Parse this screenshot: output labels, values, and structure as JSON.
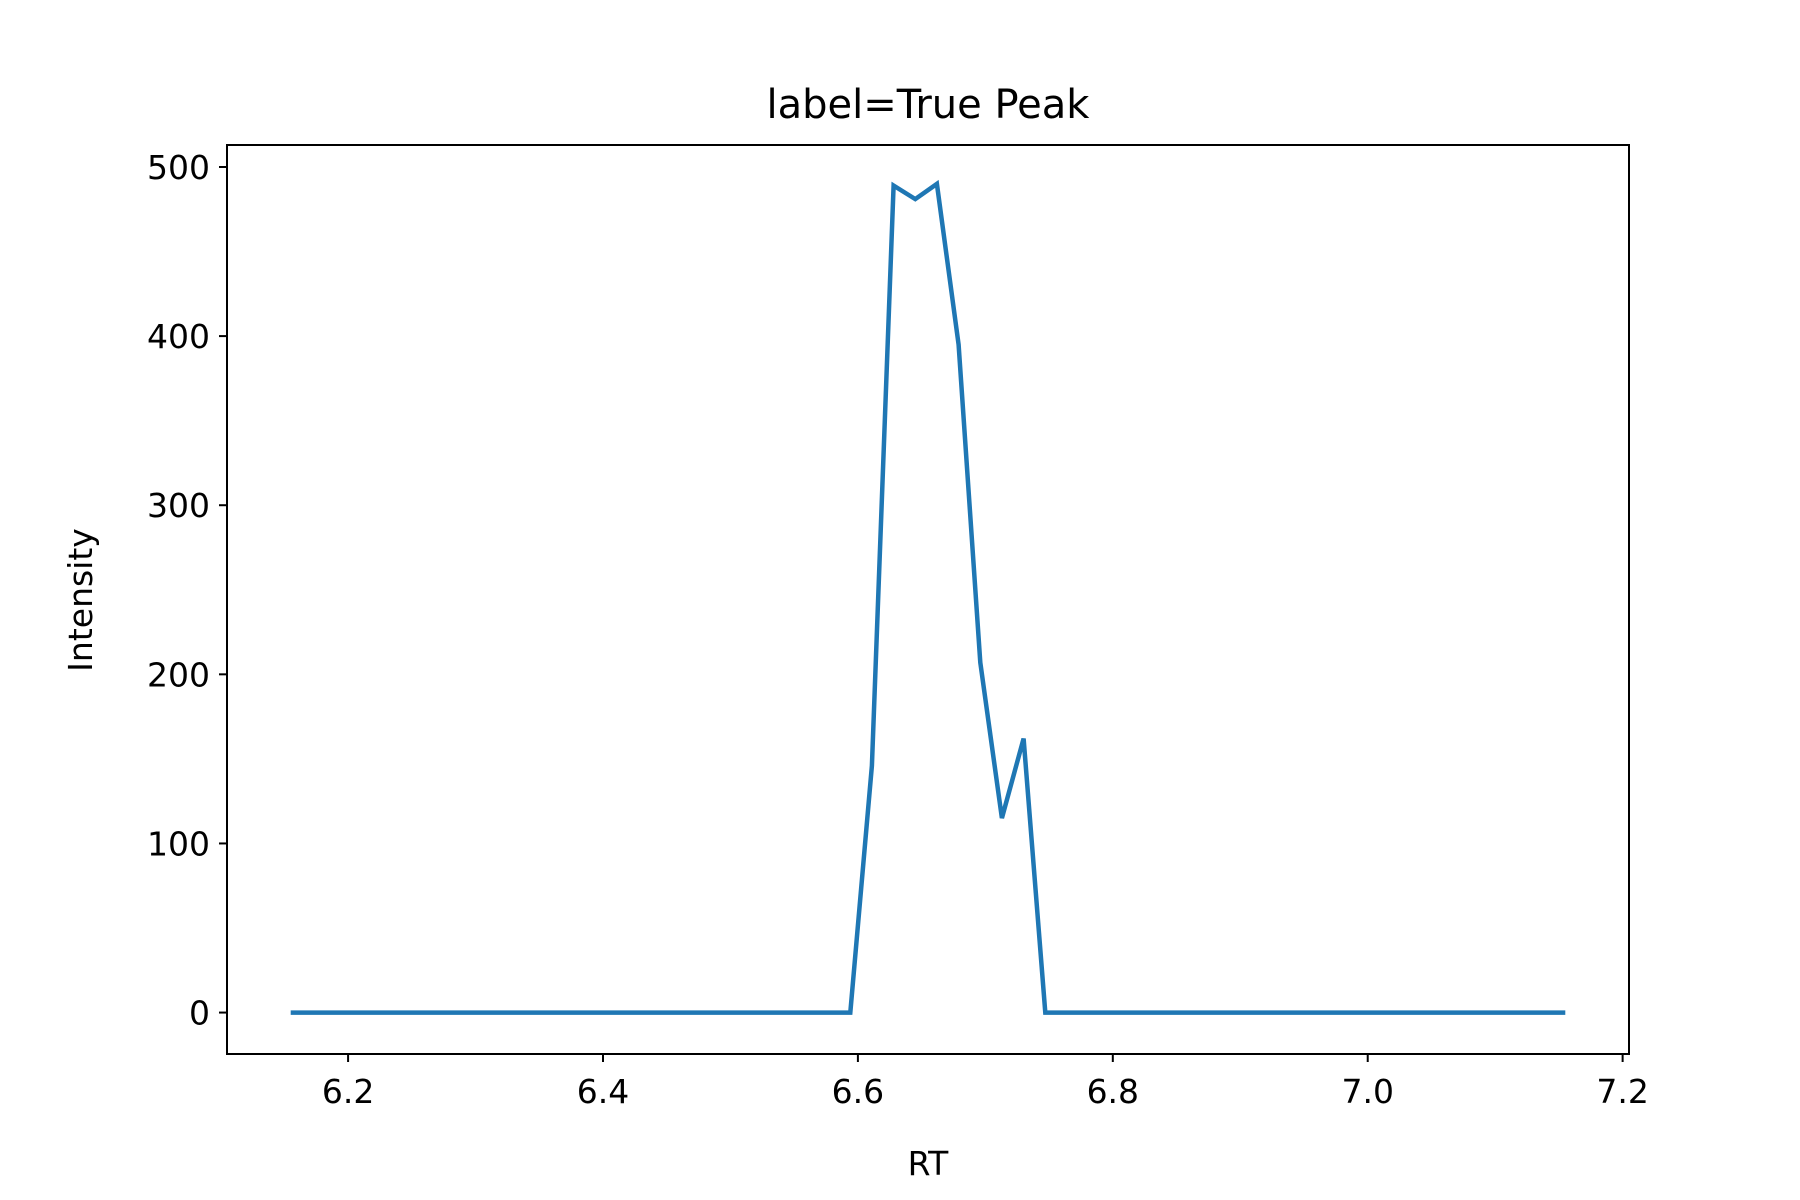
{
  "chart_data": {
    "type": "line",
    "title": "label=True Peak",
    "xlabel": "RT",
    "ylabel": "Intensity",
    "xlim": [
      6.105,
      7.205
    ],
    "ylim": [
      -24.5,
      513
    ],
    "xticks": [
      6.2,
      6.4,
      6.6,
      6.8,
      7.0,
      7.2
    ],
    "xtick_labels": [
      "6.2",
      "6.4",
      "6.6",
      "6.8",
      "7.0",
      "7.2"
    ],
    "yticks": [
      0,
      100,
      200,
      300,
      400,
      500
    ],
    "ytick_labels": [
      "0",
      "100",
      "200",
      "300",
      "400",
      "500"
    ],
    "grid": false,
    "legend": "none",
    "colors": {
      "line": "#1f77b4",
      "axes": "#000000",
      "background": "#ffffff"
    },
    "series": [
      {
        "x": [
          6.155,
          6.594,
          6.611,
          6.628,
          6.645,
          6.662,
          6.679,
          6.696,
          6.713,
          6.73,
          6.747,
          7.155
        ],
        "y": [
          0,
          0,
          146,
          489,
          481,
          490,
          395,
          207,
          115,
          162,
          0,
          0
        ]
      }
    ]
  }
}
